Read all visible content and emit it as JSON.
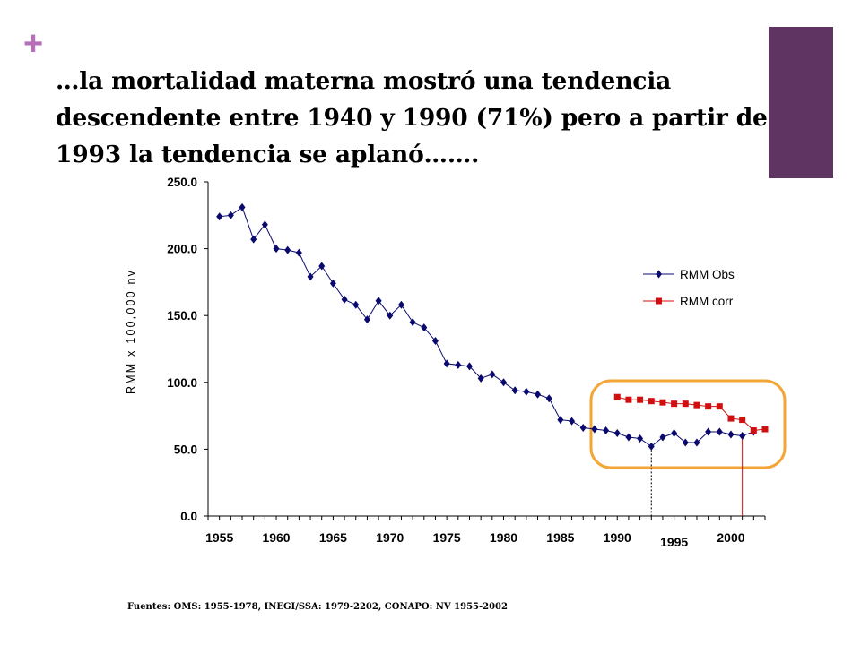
{
  "slide": {
    "plus_symbol": "+",
    "title": "…la mortalidad materna mostró una tendencia descendente entre 1940 y 1990 (71%) pero a partir de 1993 la tendencia se aplanó…….",
    "source": "Fuentes: OMS: 1955-1978, INEGI/SSA: 1979-2202, CONAPO: NV 1955-2002",
    "colors": {
      "plus": "#b66fb9",
      "accent_block": "#5f3462",
      "highlight": "#f3a535"
    }
  },
  "chart_data": {
    "type": "line",
    "title": "",
    "ylabel": "RMM x 100,000 nv",
    "xlabel": "",
    "ylim": [
      0,
      250
    ],
    "xlim": [
      1954,
      2003
    ],
    "y_ticks": [
      "0.0",
      "50.0",
      "100.0",
      "150.0",
      "200.0",
      "250.0"
    ],
    "x_tick_labels": [
      {
        "year": 1955,
        "label": "1955"
      },
      {
        "year": 1960,
        "label": "1960"
      },
      {
        "year": 1965,
        "label": "1965"
      },
      {
        "year": 1970,
        "label": "1970"
      },
      {
        "year": 1975,
        "label": "1975"
      },
      {
        "year": 1980,
        "label": "1980"
      },
      {
        "year": 1985,
        "label": "1985"
      },
      {
        "year": 1990,
        "label": "1990"
      },
      {
        "year": 1995,
        "label": "1995"
      },
      {
        "year": 2000,
        "label": "2000"
      }
    ],
    "grid": false,
    "legend_position": "right",
    "series": [
      {
        "name": "RMM Obs",
        "color": "#0a0a6e",
        "marker": "diamond",
        "x": [
          1955,
          1956,
          1957,
          1958,
          1959,
          1960,
          1961,
          1962,
          1963,
          1964,
          1965,
          1966,
          1967,
          1968,
          1969,
          1970,
          1971,
          1972,
          1973,
          1974,
          1975,
          1976,
          1977,
          1978,
          1979,
          1980,
          1981,
          1982,
          1983,
          1984,
          1985,
          1986,
          1987,
          1988,
          1989,
          1990,
          1991,
          1992,
          1993,
          1994,
          1995,
          1996,
          1997,
          1998,
          1999,
          2000,
          2001,
          2002
        ],
        "values": [
          224,
          225,
          231,
          207,
          218,
          200,
          199,
          197,
          179,
          187,
          174,
          162,
          158,
          147,
          161,
          150,
          158,
          145,
          141,
          131,
          114,
          113,
          112,
          103,
          106,
          100,
          94,
          93,
          91,
          88,
          72,
          71,
          66,
          65,
          64,
          62,
          59,
          58,
          52,
          59,
          62,
          55,
          55,
          63,
          63,
          61,
          60,
          63
        ]
      },
      {
        "name": "RMM corr",
        "color": "#d01010",
        "marker": "square",
        "x": [
          1990,
          1991,
          1992,
          1993,
          1994,
          1995,
          1996,
          1997,
          1998,
          1999,
          2000,
          2001,
          2002,
          2003
        ],
        "values": [
          89,
          87,
          87,
          86,
          85,
          84,
          84,
          83,
          82,
          82,
          73,
          72,
          64,
          65
        ]
      }
    ],
    "annotations": [
      {
        "type": "vertical-line",
        "x": 1993,
        "style": "dotted"
      },
      {
        "type": "vertical-line",
        "x": 2001,
        "style": "solid"
      },
      {
        "type": "rounded-highlight",
        "around": "1989-2003"
      }
    ]
  }
}
